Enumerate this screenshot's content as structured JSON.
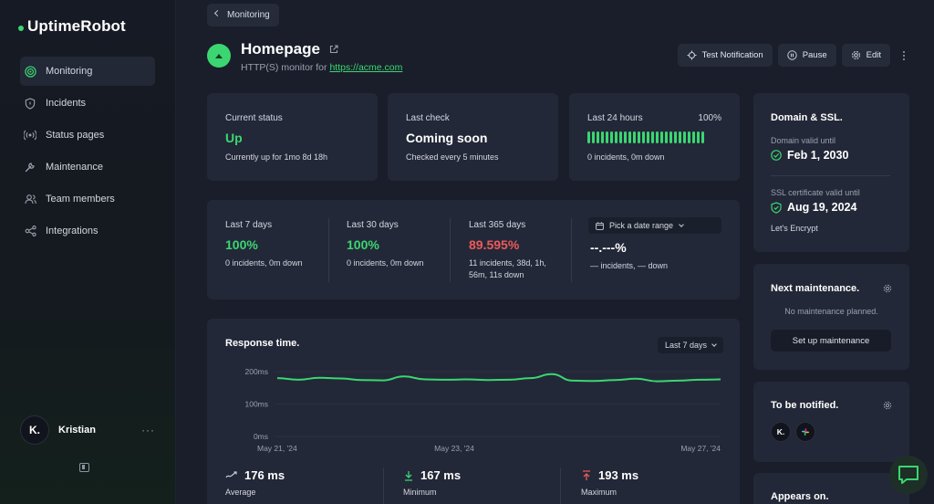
{
  "app": {
    "name": "UptimeRobot"
  },
  "sidebar": {
    "items": [
      {
        "label": "Monitoring",
        "icon": "radar-icon",
        "active": true
      },
      {
        "label": "Incidents",
        "icon": "shield-icon"
      },
      {
        "label": "Status pages",
        "icon": "broadcast-icon"
      },
      {
        "label": "Maintenance",
        "icon": "wrench-icon"
      },
      {
        "label": "Team members",
        "icon": "users-icon"
      },
      {
        "label": "Integrations",
        "icon": "integrations-icon"
      }
    ],
    "user": {
      "initials": "K.",
      "name": "Kristian",
      "more": "···"
    }
  },
  "back_button": {
    "label": "Monitoring"
  },
  "monitor": {
    "title": "Homepage",
    "subtitle_prefix": "HTTP(S) monitor for ",
    "url": "https://acme.com"
  },
  "actions": {
    "test_notification": "Test Notification",
    "pause": "Pause",
    "edit": "Edit"
  },
  "current_status": {
    "label": "Current status",
    "value": "Up",
    "detail": "Currently up for 1mo 8d 18h"
  },
  "last_check": {
    "label": "Last check",
    "value": "Coming soon",
    "detail": "Checked every 5 minutes"
  },
  "last_24h": {
    "label": "Last 24 hours",
    "percent": "100%",
    "bar_count": 26,
    "detail": "0 incidents, 0m down"
  },
  "uptime": {
    "periods": [
      {
        "label": "Last 7 days",
        "value": "100%",
        "detail": "0 incidents, 0m down",
        "status": "good"
      },
      {
        "label": "Last 30 days",
        "value": "100%",
        "detail": "0 incidents, 0m down",
        "status": "good"
      },
      {
        "label": "Last 365 days",
        "value": "89.595%",
        "detail_line1": "11 incidents, 38d, 1h,",
        "detail_line2": "56m, 11s down",
        "status": "bad"
      }
    ],
    "custom": {
      "picker": "Pick a date range",
      "value": "--.---%",
      "detail": "— incidents, — down"
    }
  },
  "response_time": {
    "title": "Response time.",
    "range": "Last 7 days",
    "average": {
      "value": "176 ms",
      "label": "Average"
    },
    "minimum": {
      "value": "167 ms",
      "label": "Minimum"
    },
    "maximum": {
      "value": "193 ms",
      "label": "Maximum"
    }
  },
  "chart_data": {
    "type": "line",
    "title": "Response time.",
    "ylabel": "ms",
    "y_ticks": [
      "200ms",
      "100ms",
      "0ms"
    ],
    "ylim": [
      0,
      200
    ],
    "x_ticks": [
      "May 21, '24",
      "May 23, '24",
      "May 27, '24"
    ],
    "series": [
      {
        "name": "Response time",
        "values": [
          180,
          175,
          181,
          179,
          174,
          173,
          185,
          176,
          175,
          176,
          174,
          175,
          180,
          192,
          172,
          171,
          174,
          178,
          170,
          172,
          175,
          176
        ]
      }
    ]
  },
  "domain_ssl": {
    "title": "Domain & SSL.",
    "domain_label": "Domain valid until",
    "domain_value": "Feb 1, 2030",
    "ssl_label": "SSL certificate valid until",
    "ssl_value": "Aug 19, 2024",
    "issuer": "Let's Encrypt"
  },
  "next_maintenance": {
    "title": "Next maintenance.",
    "empty": "No maintenance planned.",
    "button": "Set up maintenance"
  },
  "notified": {
    "title": "To be notified.",
    "avatar_initials": "K."
  },
  "appears_on": {
    "title": "Appears on."
  },
  "colors": {
    "accent": "#3bd671",
    "danger": "#ec5a5a",
    "card": "#232838",
    "background": "#1a1e2b"
  }
}
